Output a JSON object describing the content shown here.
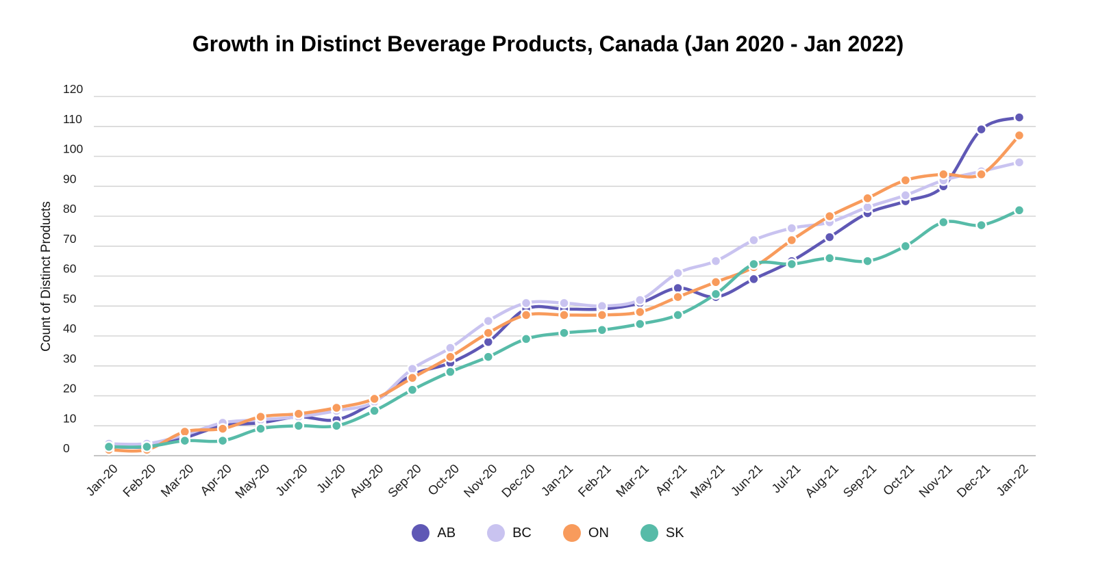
{
  "chart_data": {
    "type": "line",
    "title": "Growth in Distinct Beverage Products, Canada (Jan 2020 - Jan 2022)",
    "xlabel": "",
    "ylabel": "Count of Distinct Products",
    "ylim": [
      0,
      120
    ],
    "yticks": [
      0,
      10,
      20,
      30,
      40,
      50,
      60,
      70,
      80,
      90,
      100,
      110,
      120
    ],
    "grid": true,
    "grid_color": "#D5D5D5",
    "line_smoothing": true,
    "legend_position": "bottom",
    "categories": [
      "Jan-20",
      "Feb-20",
      "Mar-20",
      "Apr-20",
      "May-20",
      "Jun-20",
      "Jul-20",
      "Aug-20",
      "Sep-20",
      "Oct-20",
      "Nov-20",
      "Dec-20",
      "Jan-21",
      "Feb-21",
      "Mar-21",
      "Apr-21",
      "May-21",
      "Jun-21",
      "Jul-21",
      "Aug-21",
      "Sep-21",
      "Oct-21",
      "Nov-21",
      "Dec-21",
      "Jan-22"
    ],
    "series": [
      {
        "name": "AB",
        "color": "#5F58B5",
        "values": [
          3,
          3,
          6,
          10,
          11,
          13,
          12,
          18,
          27,
          31,
          38,
          49,
          49,
          49,
          51,
          56,
          53,
          59,
          65,
          73,
          81,
          85,
          90,
          109,
          113
        ]
      },
      {
        "name": "BC",
        "color": "#C9C3F0",
        "values": [
          4,
          4,
          7,
          11,
          12,
          13,
          15,
          18,
          29,
          36,
          45,
          51,
          51,
          50,
          52,
          61,
          65,
          72,
          76,
          78,
          83,
          87,
          92,
          95,
          98
        ]
      },
      {
        "name": "ON",
        "color": "#F89B5C",
        "values": [
          2,
          2,
          8,
          9,
          13,
          14,
          16,
          19,
          26,
          33,
          41,
          47,
          47,
          47,
          48,
          53,
          58,
          63,
          72,
          80,
          86,
          92,
          94,
          94,
          107
        ]
      },
      {
        "name": "SK",
        "color": "#57BBA8",
        "values": [
          3,
          3,
          5,
          5,
          9,
          10,
          10,
          15,
          22,
          28,
          33,
          39,
          41,
          42,
          44,
          47,
          54,
          64,
          64,
          66,
          65,
          70,
          78,
          77,
          82
        ]
      }
    ]
  }
}
